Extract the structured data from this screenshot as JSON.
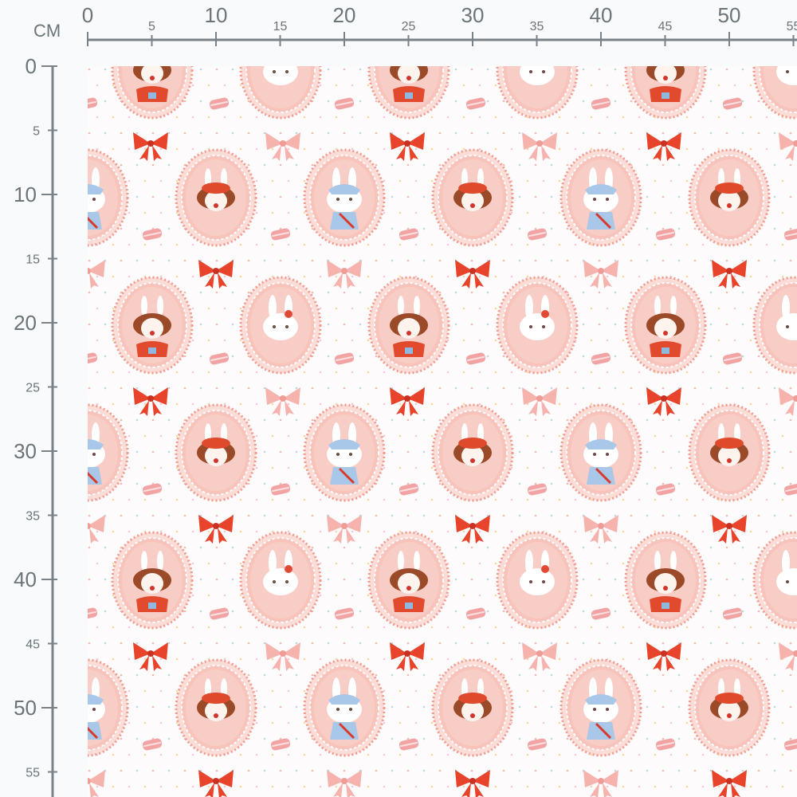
{
  "ruler": {
    "unit_label": "CM",
    "top_major_labels": [
      "0",
      "10",
      "20",
      "30",
      "40",
      "50"
    ],
    "top_minor_labels": [
      "5",
      "15",
      "25",
      "35",
      "45",
      "55"
    ],
    "left_major_labels": [
      "0",
      "10",
      "20",
      "30",
      "40",
      "50"
    ],
    "left_minor_labels": [
      "5",
      "15",
      "25",
      "35",
      "45",
      "55"
    ]
  },
  "fabric": {
    "motifs": [
      "girl-pigtails-medallion",
      "bunny-medallion",
      "blue-bunny-medallion",
      "girl-beret-medallion",
      "red-bow-icon",
      "pink-bow-icon",
      "macaron-icon",
      "confetti-dots"
    ],
    "colors": {
      "background": "#fdfbfb",
      "medallion": "#f7c3bb",
      "medallion_border": "#f09a8e",
      "red_bow": "#e8432b",
      "pink_bow": "#f6b3ae",
      "macaron": "#f2a4a4",
      "ruler": "#7a8288"
    }
  }
}
